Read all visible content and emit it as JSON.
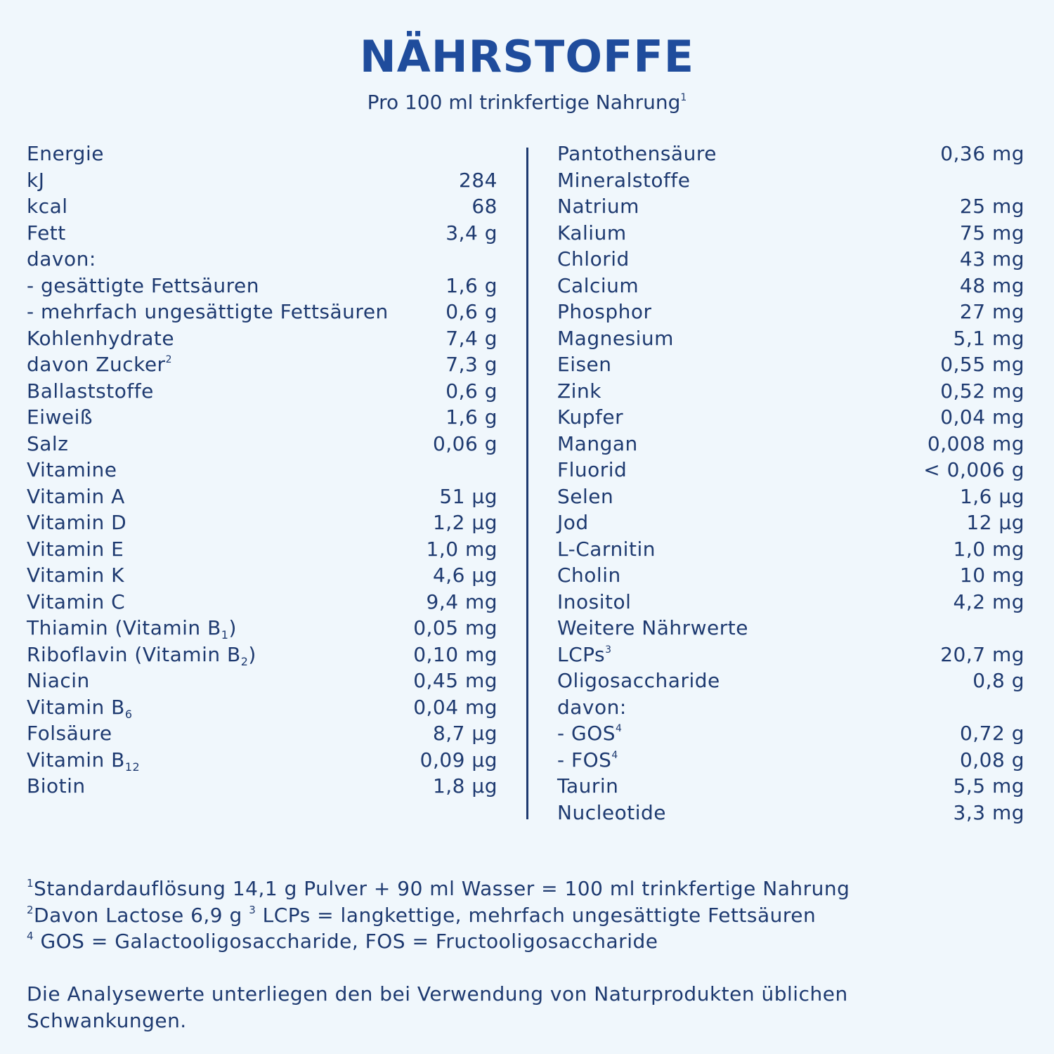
{
  "header": {
    "title": "NÄHRSTOFFE",
    "subtitle": "Pro 100 ml trinkfertige Nahrung",
    "subtitle_sup": "1"
  },
  "colors": {
    "title": "#1f4c9c",
    "text": "#1e3a70",
    "background": "#f0f7fc"
  },
  "left": [
    {
      "label": "Energie",
      "value": ""
    },
    {
      "label": "kJ",
      "value": "284"
    },
    {
      "label": "kcal",
      "value": "68"
    },
    {
      "label": "Fett",
      "value": "3,4 g"
    },
    {
      "label": "davon:",
      "value": ""
    },
    {
      "label": "- gesättigte Fettsäuren",
      "value": "1,6 g"
    },
    {
      "label": "- mehrfach ungesättigte Fettsäuren",
      "value": "0,6 g"
    },
    {
      "label": "Kohlenhydrate",
      "value": "7,4 g"
    },
    {
      "label": "davon Zucker",
      "sup": "2",
      "value": "7,3 g"
    },
    {
      "label": "Ballaststoffe",
      "value": "0,6 g"
    },
    {
      "label": "Eiweiß",
      "value": "1,6 g"
    },
    {
      "label": "Salz",
      "value": "0,06 g"
    },
    {
      "label": "Vitamine",
      "value": ""
    },
    {
      "label": "Vitamin A",
      "value": "51 µg"
    },
    {
      "label": "Vitamin D",
      "value": "1,2 µg"
    },
    {
      "label": "Vitamin E",
      "value": "1,0 mg"
    },
    {
      "label": "Vitamin K",
      "value": "4,6 µg"
    },
    {
      "label": "Vitamin C",
      "value": "9,4 mg"
    },
    {
      "label": "Thiamin (Vitamin B",
      "sub": "1",
      "after": ")",
      "value": "0,05 mg"
    },
    {
      "label": "Riboflavin (Vitamin B",
      "sub": "2",
      "after": ")",
      "value": "0,10 mg"
    },
    {
      "label": "Niacin",
      "value": "0,45 mg"
    },
    {
      "label": "Vitamin B",
      "sub": "6",
      "value": "0,04 mg"
    },
    {
      "label": "Folsäure",
      "value": "8,7 µg"
    },
    {
      "label": "Vitamin B",
      "sub": "12",
      "value": "0,09 µg"
    },
    {
      "label": "Biotin",
      "value": "1,8 µg"
    }
  ],
  "right": [
    {
      "label": "Pantothensäure",
      "value": "0,36 mg"
    },
    {
      "label": "Mineralstoffe",
      "value": ""
    },
    {
      "label": "Natrium",
      "value": "25 mg"
    },
    {
      "label": "Kalium",
      "value": "75 mg"
    },
    {
      "label": "Chlorid",
      "value": "43 mg"
    },
    {
      "label": "Calcium",
      "value": "48 mg"
    },
    {
      "label": "Phosphor",
      "value": "27 mg"
    },
    {
      "label": "Magnesium",
      "value": "5,1 mg"
    },
    {
      "label": "Eisen",
      "value": "0,55 mg"
    },
    {
      "label": "Zink",
      "value": "0,52 mg"
    },
    {
      "label": "Kupfer",
      "value": "0,04 mg"
    },
    {
      "label": "Mangan",
      "value": "0,008 mg"
    },
    {
      "label": "Fluorid",
      "value": "< 0,006 g"
    },
    {
      "label": "Selen",
      "value": "1,6 µg"
    },
    {
      "label": "Jod",
      "value": "12 µg"
    },
    {
      "label": "L-Carnitin",
      "value": "1,0 mg"
    },
    {
      "label": "Cholin",
      "value": "10 mg"
    },
    {
      "label": "Inositol",
      "value": "4,2 mg"
    },
    {
      "label": "Weitere Nährwerte",
      "value": ""
    },
    {
      "label": "LCPs",
      "sup": "3",
      "value": "20,7 mg"
    },
    {
      "label": "Oligosaccharide",
      "value": "0,8 g"
    },
    {
      "label": "davon:",
      "value": ""
    },
    {
      "label": "- GOS",
      "sup": "4",
      "value": "0,72 g"
    },
    {
      "label": "- FOS",
      "sup": "4",
      "value": "0,08 g"
    },
    {
      "label": "Taurin",
      "value": "5,5 mg"
    },
    {
      "label": "Nucleotide",
      "value": "3,3 mg"
    }
  ],
  "footnotes": [
    {
      "mark": "1",
      "text": "Standardauflösung 14,1 g Pulver + 90 ml Wasser = 100 ml trinkfertige Nahrung"
    },
    {
      "mark": "2",
      "text": "Davon Lactose 6,9 g ",
      "mark2": "3",
      "text2": " LCPs = langkettige, mehrfach ungesättigte Fettsäuren"
    },
    {
      "mark": "4",
      "text": " GOS = Galactooligosaccharide, FOS = Fructooligosaccharide"
    }
  ],
  "disclaimer": [
    "Die Analysewerte unterliegen den bei Verwendung von Naturprodukten üblichen",
    "Schwankungen."
  ]
}
